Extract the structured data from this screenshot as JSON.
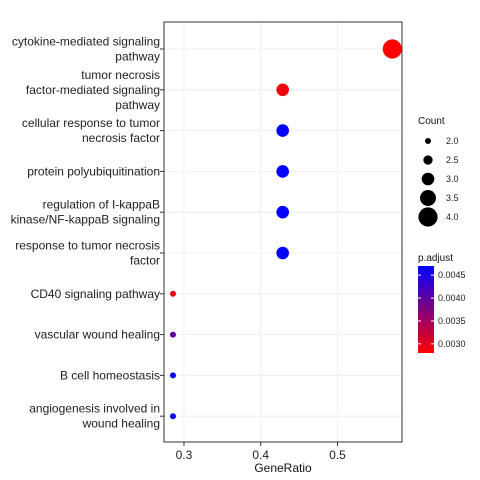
{
  "chart_data": {
    "type": "scatter",
    "xlabel": "GeneRatio",
    "ylabel": "",
    "xlim": [
      0.274,
      0.584
    ],
    "xticks": [
      0.3,
      0.4,
      0.5
    ],
    "xtick_labels": [
      "0.3",
      "0.4",
      "0.5"
    ],
    "grid": true,
    "categories": [
      {
        "label": [
          "cytokine-mediated signaling",
          "pathway"
        ],
        "x": 0.5714,
        "count": 4,
        "p_adjust": 0.0028
      },
      {
        "label": [
          "tumor necrosis",
          "factor-mediated signaling",
          "pathway"
        ],
        "x": 0.4286,
        "count": 3,
        "p_adjust": 0.0029
      },
      {
        "label": [
          "cellular response to tumor",
          "necrosis factor"
        ],
        "x": 0.4286,
        "count": 3,
        "p_adjust": 0.0047
      },
      {
        "label": [
          "protein polyubiquitination"
        ],
        "x": 0.4286,
        "count": 3,
        "p_adjust": 0.0047
      },
      {
        "label": [
          "regulation of I-kappaB",
          "kinase/NF-kappaB signaling"
        ],
        "x": 0.4286,
        "count": 3,
        "p_adjust": 0.0047
      },
      {
        "label": [
          "response to tumor necrosis",
          "factor"
        ],
        "x": 0.4286,
        "count": 3,
        "p_adjust": 0.0047
      },
      {
        "label": [
          "CD40 signaling pathway"
        ],
        "x": 0.2857,
        "count": 2,
        "p_adjust": 0.0029
      },
      {
        "label": [
          "vascular wound healing"
        ],
        "x": 0.2857,
        "count": 2,
        "p_adjust": 0.004
      },
      {
        "label": [
          "B cell homeostasis"
        ],
        "x": 0.2857,
        "count": 2,
        "p_adjust": 0.0047
      },
      {
        "label": [
          "angiogenesis involved in",
          "wound healing"
        ],
        "x": 0.2857,
        "count": 2,
        "p_adjust": 0.0047
      }
    ],
    "legend_placement": "right",
    "size_legend": {
      "title": "Count",
      "values": [
        2.0,
        2.5,
        3.0,
        3.5,
        4.0
      ],
      "labels": [
        "2.0",
        "2.5",
        "3.0",
        "3.5",
        "4.0"
      ]
    },
    "color_legend": {
      "title": "p.adjust",
      "range": [
        0.0028,
        0.0047
      ],
      "ticks": [
        0.003,
        0.0035,
        0.004,
        0.0045
      ],
      "labels": [
        "0.0030",
        "0.0035",
        "0.0040",
        "0.0045"
      ],
      "low_color": "#ff0000",
      "high_color": "#0000ff"
    }
  }
}
